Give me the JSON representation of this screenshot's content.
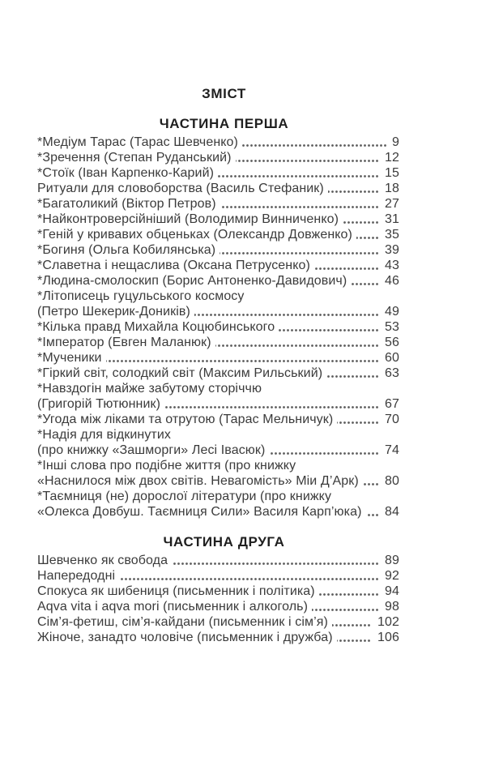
{
  "page": {
    "title": "ЗМІСТ",
    "background": "#ffffff",
    "text_color": "#3b3b3b",
    "heading_color": "#1f1f1f"
  },
  "sections": [
    {
      "heading": "ЧАСТИНА ПЕРША",
      "entries": [
        {
          "lines": [
            "*Медіум Тарас (Тарас Шевченко)"
          ],
          "page": "9"
        },
        {
          "lines": [
            "*Зречення (Степан Руданський)"
          ],
          "page": "12"
        },
        {
          "lines": [
            "*Стоїк (Іван Карпенко-Карий)"
          ],
          "page": "15"
        },
        {
          "lines": [
            "Ритуали для словоборства (Василь Стефаник)"
          ],
          "page": "18"
        },
        {
          "lines": [
            "*Багатоликий (Віктор Петров)"
          ],
          "page": "27"
        },
        {
          "lines": [
            "*Найконтроверсійніший (Володимир Винниченко)"
          ],
          "page": "31"
        },
        {
          "lines": [
            "*Геній у кривавих обценьках (Олександр Довженко)"
          ],
          "page": "35"
        },
        {
          "lines": [
            "*Богиня (Ольга Кобилянська)"
          ],
          "page": "39"
        },
        {
          "lines": [
            "*Славетна і нещаслива (Оксана Петрусенко)"
          ],
          "page": "43"
        },
        {
          "lines": [
            "*Людина-смолоскип (Борис Антоненко-Давидович)"
          ],
          "page": "46"
        },
        {
          "lines": [
            "*Літописець гуцульського космосу",
            "(Петро Шекерик-Доників)"
          ],
          "page": "49"
        },
        {
          "lines": [
            "*Кілька правд Михайла Коцюбинського"
          ],
          "page": "53"
        },
        {
          "lines": [
            "*Імператор (Евген Маланюк)"
          ],
          "page": "56"
        },
        {
          "lines": [
            "*Мученики"
          ],
          "page": "60"
        },
        {
          "lines": [
            "*Гіркий світ, солодкий світ (Максим Рильський)"
          ],
          "page": "63"
        },
        {
          "lines": [
            "*Навздогін майже забутому сторіччю",
            "(Григорій Тютюнник)"
          ],
          "page": "67"
        },
        {
          "lines": [
            "*Угода між ліками та отрутою (Тарас Мельничук)"
          ],
          "page": "70"
        },
        {
          "lines": [
            "*Надія для відкинутих",
            "(про книжку «Зашморги» Лесі Івасюк)"
          ],
          "page": "74"
        },
        {
          "lines": [
            "*Інші слова про подібне життя (про книжку",
            "«Наснилося між двох світів. Невагомість» Міи Д’Арк)"
          ],
          "page": "80"
        },
        {
          "lines": [
            "*Таємниця (не) дорослої літератури (про книжку",
            "«Олекса Довбуш. Таємниця Сили» Василя Карп’юка)"
          ],
          "page": "84"
        }
      ]
    },
    {
      "heading": "ЧАСТИНА ДРУГА",
      "entries": [
        {
          "lines": [
            "Шевченко як свобода"
          ],
          "page": "89"
        },
        {
          "lines": [
            "Напередодні"
          ],
          "page": "92"
        },
        {
          "lines": [
            "Спокуса як шибениця (письменник і політика)"
          ],
          "page": "94"
        },
        {
          "lines": [
            "Aqva vita і aqva mori (письменник і алкоголь)"
          ],
          "page": "98"
        },
        {
          "lines": [
            "Сім’я-фетиш, сім’я-кайдани (письменник і сім’я)"
          ],
          "page": "102"
        },
        {
          "lines": [
            "Жіноче, занадто чоловіче (письменник і дружба)"
          ],
          "page": "106"
        }
      ]
    }
  ]
}
